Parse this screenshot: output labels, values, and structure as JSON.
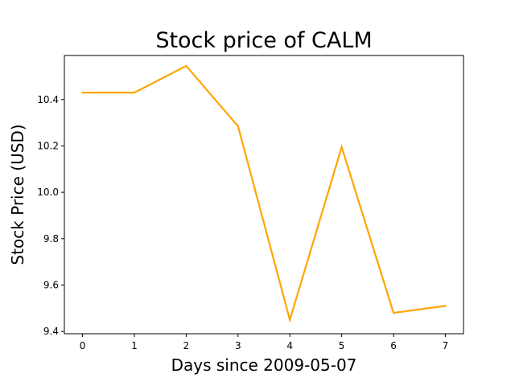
{
  "chart_data": {
    "type": "line",
    "title": "Stock price of CALM",
    "xlabel": "Days since 2009-05-07",
    "ylabel": "Stock Price (USD)",
    "x": [
      0,
      1,
      2,
      3,
      4,
      5,
      6,
      7
    ],
    "series": [
      {
        "values": [
          10.43,
          10.43,
          10.545,
          10.285,
          9.45,
          10.195,
          9.48,
          9.51
        ],
        "color": "#ffa500"
      }
    ],
    "xlim": [
      -0.35,
      7.35
    ],
    "ylim": [
      9.39,
      10.59
    ],
    "xticks": [
      0,
      1,
      2,
      3,
      4,
      5,
      6,
      7
    ],
    "xtick_labels": [
      "0",
      "1",
      "2",
      "3",
      "4",
      "5",
      "6",
      "7"
    ],
    "yticks": [
      9.4,
      9.6,
      9.8,
      10.0,
      10.2,
      10.4
    ],
    "ytick_labels": [
      "9.4",
      "9.6",
      "9.8",
      "10.0",
      "10.2",
      "10.4"
    ],
    "grid": false,
    "legend": "none"
  }
}
